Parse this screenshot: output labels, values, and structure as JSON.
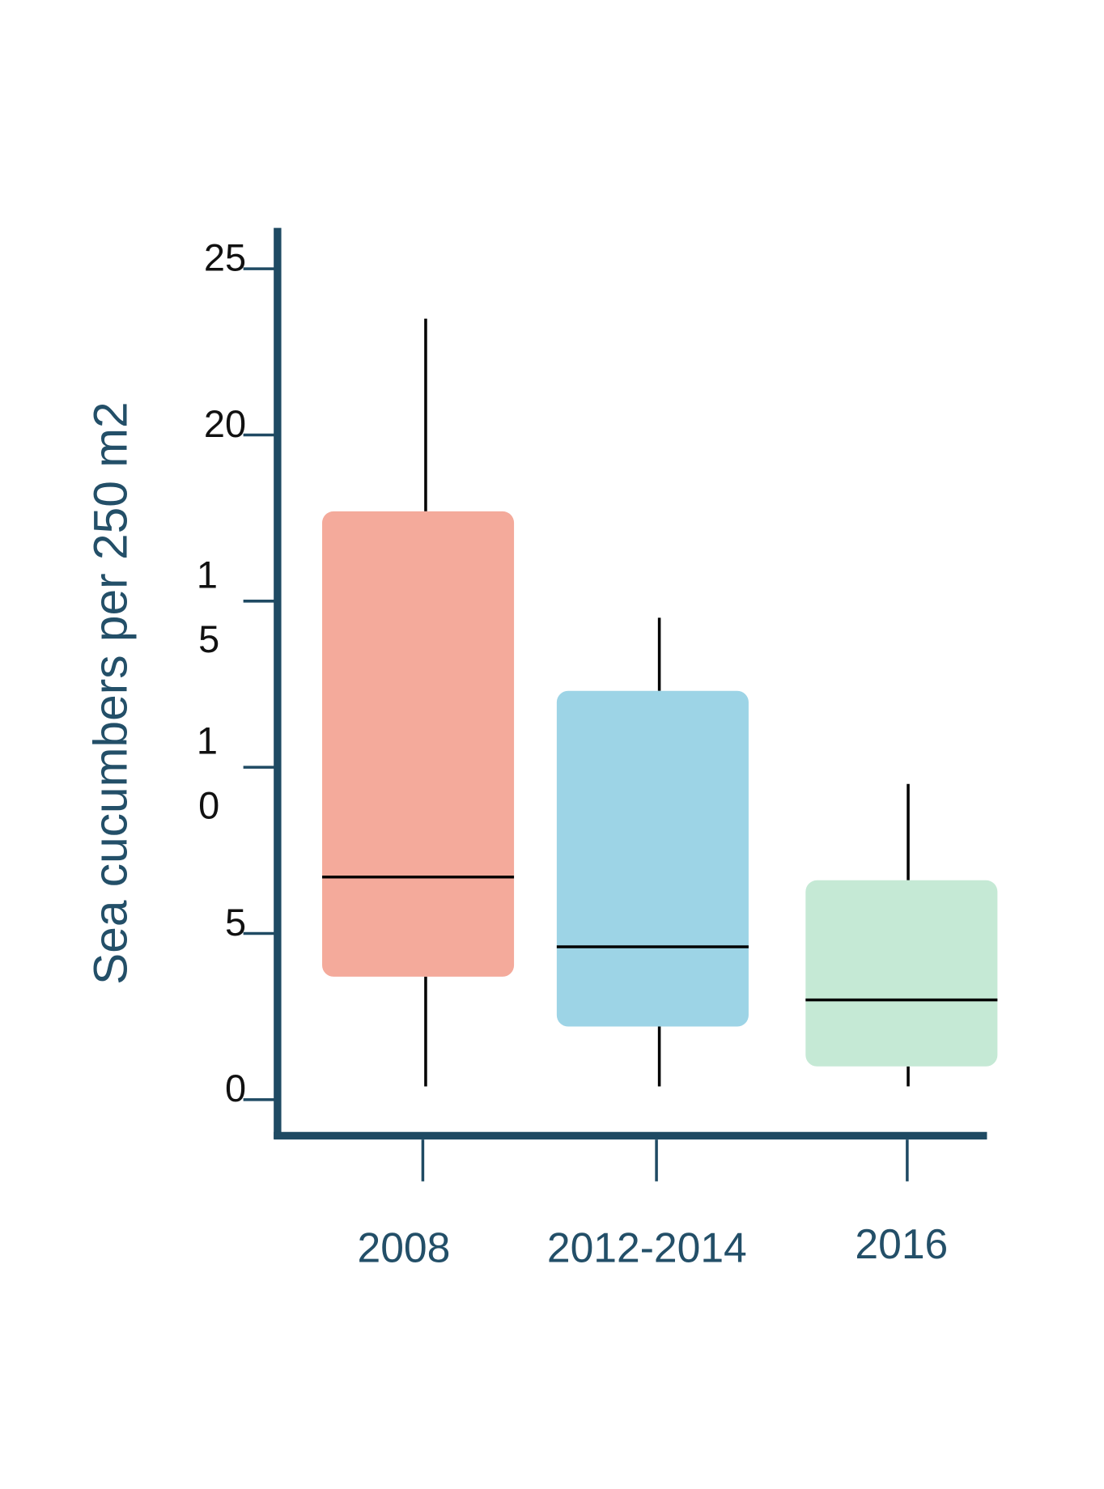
{
  "chart_data": {
    "type": "box",
    "title": "",
    "xlabel": "",
    "ylabel": "Sea cucumbers per 250 m2",
    "ylim": [
      0,
      26
    ],
    "yticks": [
      "0",
      "5",
      "10",
      "15",
      "20",
      "25"
    ],
    "grid": false,
    "categories": [
      "2008",
      "2012-2014",
      "2016"
    ],
    "boxes": [
      {
        "category": "2008",
        "whisker_low": 0.4,
        "q1": 3.7,
        "median": 6.7,
        "q3": 17.7,
        "whisker_high": 23.5,
        "color": "#f4aa9b"
      },
      {
        "category": "2012-2014",
        "whisker_low": 0.4,
        "q1": 2.2,
        "median": 4.6,
        "q3": 12.3,
        "whisker_high": 14.5,
        "color": "#9dd4e6"
      },
      {
        "category": "2016",
        "whisker_low": 0.4,
        "q1": 1.0,
        "median": 3.0,
        "q3": 6.6,
        "whisker_high": 9.5,
        "color": "#c5e9d5"
      }
    ],
    "axis_color": "#1f4a63"
  }
}
